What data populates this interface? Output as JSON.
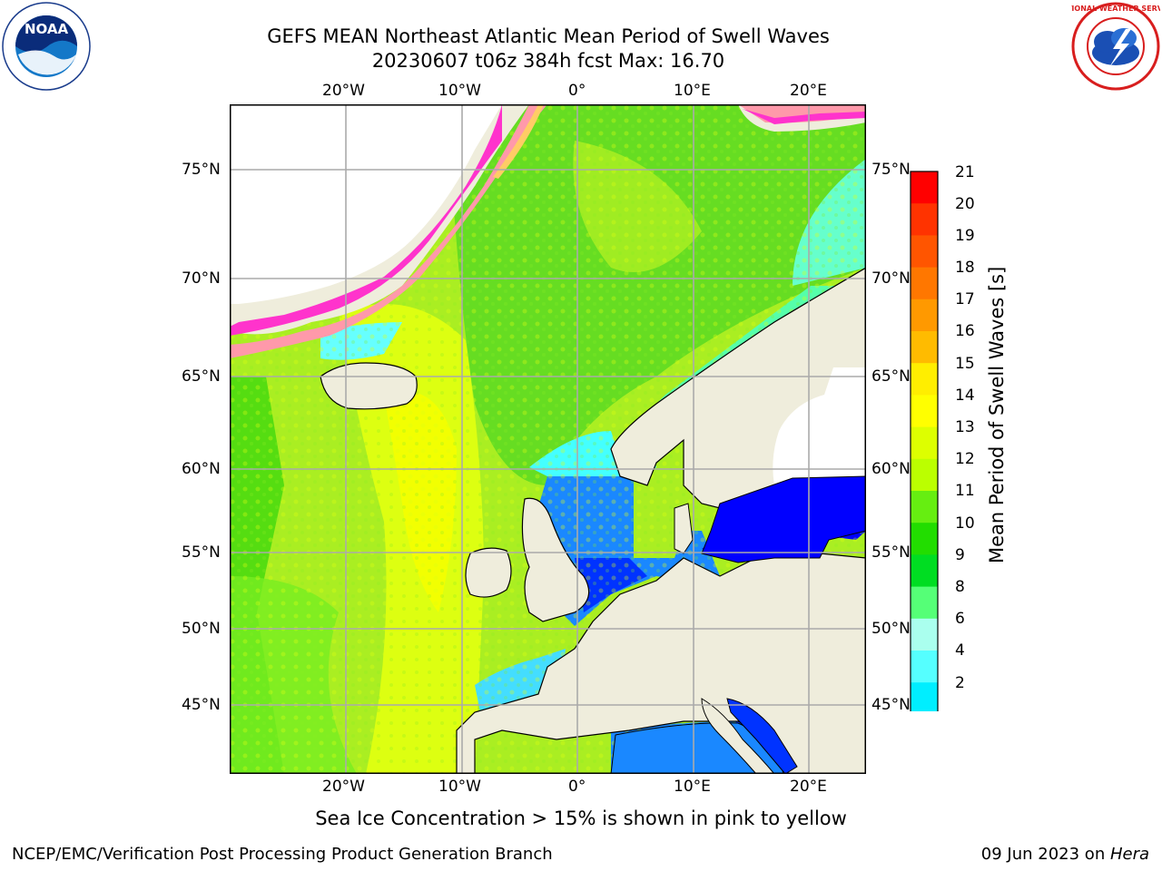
{
  "title": {
    "line1": "GEFS MEAN Northeast Atlantic Mean Period of Swell Waves",
    "line2": "20230607 t06z 384h fcst   Max: 16.70"
  },
  "logos": {
    "noaa_text": "NOAA",
    "noaa_ring": "NATIONAL OCEANIC AND ATMOSPHERIC ADMINISTRATION · U.S. DEPARTMENT OF COMMERCE",
    "nws_ring": "NATIONAL WEATHER SERVICE"
  },
  "map": {
    "lon_labels_top": [
      "20°W",
      "10°W",
      "0°",
      "10°E",
      "20°E"
    ],
    "lon_labels_bottom": [
      "20°W",
      "10°W",
      "0°",
      "10°E",
      "20°E"
    ],
    "lat_labels_left": [
      "75°N",
      "70°N",
      "65°N",
      "60°N",
      "55°N",
      "50°N",
      "45°N"
    ],
    "lat_labels_right": [
      "75°N",
      "70°N",
      "65°N",
      "60°N",
      "55°N",
      "50°N",
      "45°N"
    ],
    "land_color": "#efeddc",
    "ice_colors": [
      "#ff33cc",
      "#ff99aa",
      "#ffcc66",
      "#ffff66"
    ]
  },
  "colorbar": {
    "title": "Mean Period of Swell Waves [s]",
    "ticks": [
      "21",
      "20",
      "19",
      "18",
      "17",
      "16",
      "15",
      "14",
      "13",
      "12",
      "11",
      "10",
      "9",
      "8",
      "6",
      "4",
      "2"
    ],
    "colors_top_to_bottom": [
      "#ff0000",
      "#ff3300",
      "#ff5500",
      "#ff7700",
      "#ff9900",
      "#ffbb00",
      "#ffee00",
      "#ffff00",
      "#ddff00",
      "#bbff00",
      "#66ee11",
      "#22dd00",
      "#00dd22",
      "#55ff77",
      "#aaffee",
      "#55ffff",
      "#00eeff",
      "#0077ff",
      "#0000ff"
    ]
  },
  "notes": {
    "ice": "Sea Ice Concentration > 15% is shown in pink to yellow"
  },
  "footer": {
    "left": "NCEP/EMC/Verification Post Processing Product Generation Branch",
    "right_date": "09 Jun 2023 on ",
    "right_machine": "Hera"
  }
}
